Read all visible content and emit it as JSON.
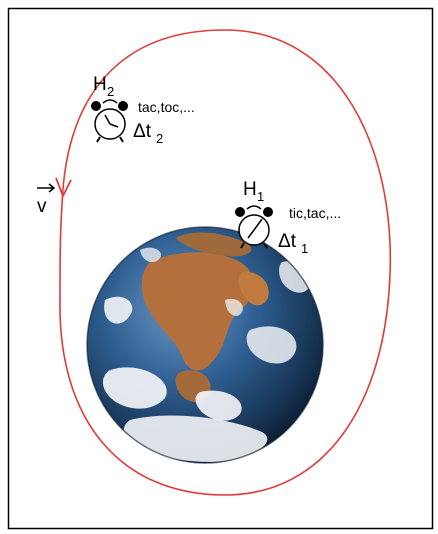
{
  "velocity": {
    "symbol": "v"
  },
  "clock_2": {
    "name": "H",
    "index": "2",
    "sound": "tac,toc,...",
    "delta_symbol": "Δt",
    "delta_index": "2"
  },
  "clock_1": {
    "name": "H",
    "index": "1",
    "sound": "tic,tac,...",
    "delta_symbol": "Δt",
    "delta_index": "1"
  },
  "colors": {
    "orbit": "#e23b3b",
    "frame": "#000000",
    "ocean": "#2d5a8c",
    "land": "#b5703a",
    "cloud": "#f2f4f6",
    "clock_face": "#ffffff"
  }
}
